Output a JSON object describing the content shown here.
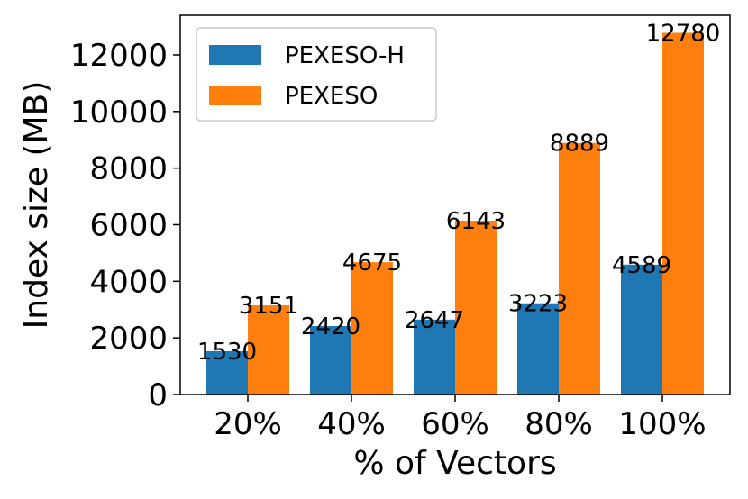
{
  "chart_data": {
    "type": "bar",
    "title": "",
    "xlabel": "% of Vectors",
    "ylabel": "Index size (MB)",
    "categories": [
      "20%",
      "40%",
      "60%",
      "80%",
      "100%"
    ],
    "ylim": [
      0,
      13400
    ],
    "yticks": [
      0,
      2000,
      4000,
      6000,
      8000,
      10000,
      12000
    ],
    "ytick_labels": [
      "0",
      "2000",
      "4000",
      "6000",
      "8000",
      "10000",
      "12000"
    ],
    "grid": false,
    "legend_position": "top-left",
    "series": [
      {
        "name": "PEXESO-H",
        "color": "#1f77b4",
        "values": [
          1530,
          2420,
          2647,
          3223,
          4589
        ],
        "labels": [
          "1530",
          "2420",
          "2647",
          "3223",
          "4589"
        ]
      },
      {
        "name": "PEXESO",
        "color": "#ff7f0e",
        "values": [
          3151,
          4675,
          6143,
          8889,
          12780
        ],
        "labels": [
          "3151",
          "4675",
          "6143",
          "8889",
          "12780"
        ]
      }
    ]
  }
}
